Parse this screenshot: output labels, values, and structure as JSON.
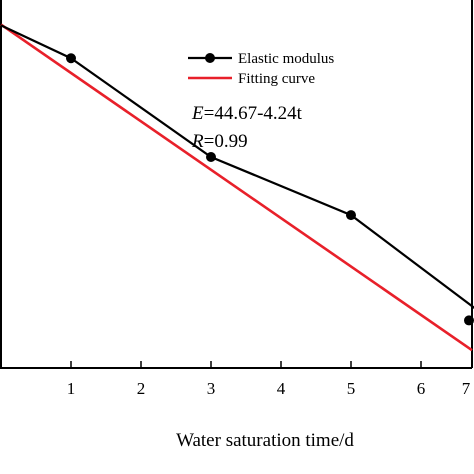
{
  "chart_data": {
    "type": "line",
    "xlabel": "Water saturation time/d",
    "ylabel": "",
    "x_ticks": [
      1,
      2,
      3,
      4,
      5,
      6,
      7
    ],
    "xlim": [
      0,
      7
    ],
    "ylim": [
      14,
      46
    ],
    "grid": false,
    "legend_position": "top-right",
    "series": [
      {
        "name": "Elastic modulus",
        "kind": "line-with-markers",
        "color": "#000000",
        "x": [
          0,
          1,
          3,
          5,
          7
        ],
        "y": [
          44.6,
          41.6,
          32.6,
          27.3,
          17.7
        ]
      },
      {
        "name": "Fitting curve",
        "kind": "line",
        "color": "#e8202a",
        "intercept": 44.67,
        "slope": -4.24,
        "x": [
          0,
          7
        ],
        "y": [
          44.67,
          14.99
        ]
      }
    ],
    "annotations": {
      "equation_var": "E",
      "equation_rest": "=44.67-4.24t",
      "r_var": "R",
      "r_rest": "=0.99"
    }
  }
}
